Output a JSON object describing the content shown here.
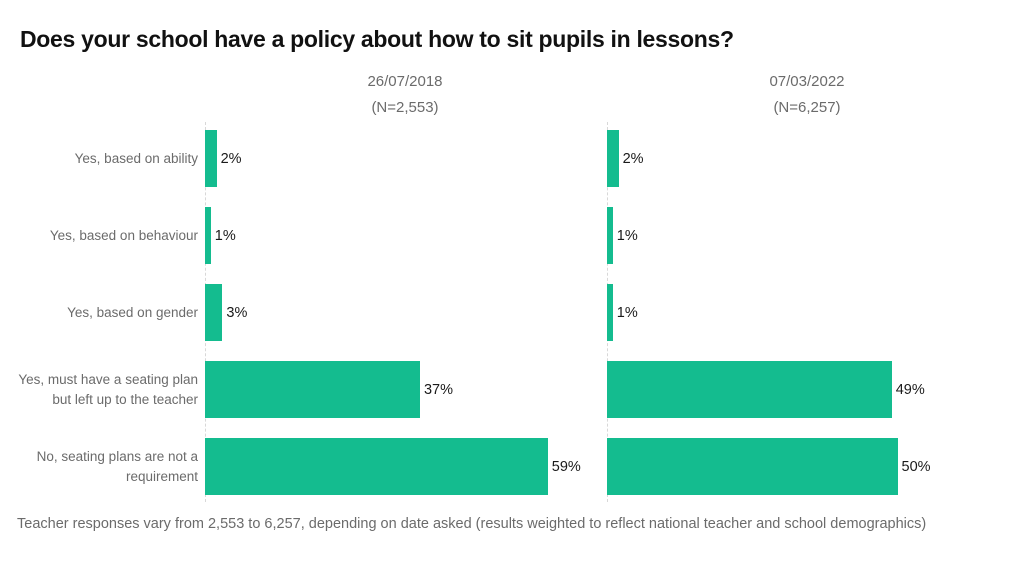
{
  "chart_data": {
    "type": "bar",
    "orientation": "horizontal",
    "title": "Does your school have a policy about how to sit pupils in lessons?",
    "categories": [
      "Yes, based on ability",
      "Yes, based on behaviour",
      "Yes, based on gender",
      "Yes, must have a seating plan but left up to the teacher",
      "No, seating plans are not a requirement"
    ],
    "series": [
      {
        "name": "26/07/2018",
        "n_label": "(N=2,553)",
        "values": [
          2,
          1,
          3,
          37,
          59
        ],
        "value_labels": [
          "2%",
          "1%",
          "3%",
          "37%",
          "59%"
        ]
      },
      {
        "name": "07/03/2022",
        "n_label": "(N=6,257)",
        "values": [
          2,
          1,
          1,
          49,
          50
        ],
        "value_labels": [
          "2%",
          "1%",
          "1%",
          "49%",
          "50%"
        ]
      }
    ],
    "xlim": [
      0,
      100
    ],
    "unit": "%",
    "grid": false,
    "bar_color": "#14bc8f",
    "footnote": "Teacher responses vary from 2,553 to 6,257, depending on date asked (results weighted to reflect national teacher and school demographics)"
  }
}
